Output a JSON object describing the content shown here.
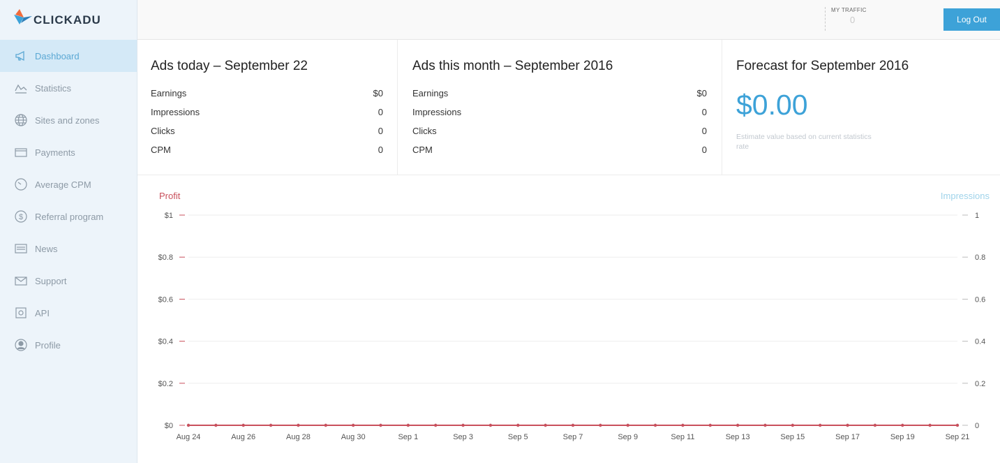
{
  "app": {
    "logo_text": "CLICKADU"
  },
  "sidebar": {
    "items": [
      {
        "label": "Dashboard",
        "icon": "megaphone-icon",
        "active": true
      },
      {
        "label": "Statistics",
        "icon": "line-chart-icon"
      },
      {
        "label": "Sites and zones",
        "icon": "globe-icon"
      },
      {
        "label": "Payments",
        "icon": "card-icon"
      },
      {
        "label": "Average CPM",
        "icon": "gauge-icon"
      },
      {
        "label": "Referral program",
        "icon": "dollar-icon"
      },
      {
        "label": "News",
        "icon": "news-icon"
      },
      {
        "label": "Support",
        "icon": "envelope-icon"
      },
      {
        "label": "API",
        "icon": "api-icon"
      },
      {
        "label": "Profile",
        "icon": "user-icon"
      }
    ]
  },
  "header": {
    "traffic_label": "MY TRAFFIC",
    "traffic_value": "0",
    "logout_label": "Log Out"
  },
  "panels": {
    "today": {
      "title": "Ads today – September 22",
      "rows": [
        {
          "label": "Earnings",
          "value": "$0"
        },
        {
          "label": "Impressions",
          "value": "0"
        },
        {
          "label": "Clicks",
          "value": "0"
        },
        {
          "label": "CPM",
          "value": "0"
        }
      ]
    },
    "month": {
      "title": "Ads this month – September 2016",
      "rows": [
        {
          "label": "Earnings",
          "value": "$0"
        },
        {
          "label": "Impressions",
          "value": "0"
        },
        {
          "label": "Clicks",
          "value": "0"
        },
        {
          "label": "CPM",
          "value": "0"
        }
      ]
    },
    "forecast": {
      "title": "Forecast for September 2016",
      "value": "$0.00",
      "note": "Estimate value based on current statistics rate"
    }
  },
  "chart_data": {
    "type": "line",
    "x": [
      "Aug 24",
      "Aug 25",
      "Aug 26",
      "Aug 27",
      "Aug 28",
      "Aug 29",
      "Aug 30",
      "Aug 31",
      "Sep 1",
      "Sep 2",
      "Sep 3",
      "Sep 4",
      "Sep 5",
      "Sep 6",
      "Sep 7",
      "Sep 8",
      "Sep 9",
      "Sep 10",
      "Sep 11",
      "Sep 12",
      "Sep 13",
      "Sep 14",
      "Sep 15",
      "Sep 16",
      "Sep 17",
      "Sep 18",
      "Sep 19",
      "Sep 20",
      "Sep 21"
    ],
    "tick_labels": [
      "Aug 24",
      "Aug 26",
      "Aug 28",
      "Aug 30",
      "Sep 1",
      "Sep 3",
      "Sep 5",
      "Sep 7",
      "Sep 9",
      "Sep 11",
      "Sep 13",
      "Sep 15",
      "Sep 17",
      "Sep 19",
      "Sep 21"
    ],
    "series": [
      {
        "name": "Profit",
        "axis": "left",
        "color": "#c9505c",
        "values": [
          0,
          0,
          0,
          0,
          0,
          0,
          0,
          0,
          0,
          0,
          0,
          0,
          0,
          0,
          0,
          0,
          0,
          0,
          0,
          0,
          0,
          0,
          0,
          0,
          0,
          0,
          0,
          0,
          0
        ]
      },
      {
        "name": "Impressions",
        "axis": "right",
        "color": "#9fd3ea",
        "values": [
          0,
          0,
          0,
          0,
          0,
          0,
          0,
          0,
          0,
          0,
          0,
          0,
          0,
          0,
          0,
          0,
          0,
          0,
          0,
          0,
          0,
          0,
          0,
          0,
          0,
          0,
          0,
          0,
          0
        ]
      }
    ],
    "left_axis": {
      "label": "Profit",
      "ticks": [
        "$0",
        "$0.2",
        "$0.4",
        "$0.6",
        "$0.8",
        "$1"
      ],
      "ylim": [
        0,
        1
      ]
    },
    "right_axis": {
      "label": "Impressions",
      "ticks": [
        "0",
        "0.2",
        "0.4",
        "0.6",
        "0.8",
        "1"
      ],
      "ylim": [
        0,
        1
      ]
    },
    "grid": true
  },
  "colors": {
    "accent": "#3da2d8",
    "profit": "#c9505c",
    "impressions": "#9fd3ea"
  }
}
